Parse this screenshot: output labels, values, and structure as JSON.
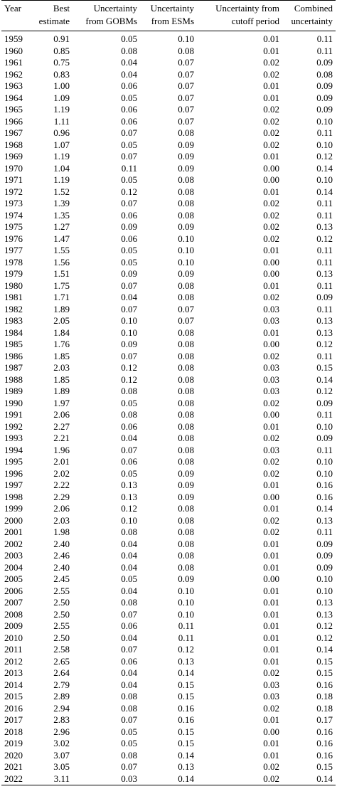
{
  "table": {
    "headers": [
      [
        "Year"
      ],
      [
        "Best",
        "estimate"
      ],
      [
        "Uncertainty",
        "from GOBMs"
      ],
      [
        "Uncertainty",
        "from ESMs"
      ],
      [
        "Uncertainty from",
        "cutoff period"
      ],
      [
        "Combined",
        "uncertainty"
      ]
    ],
    "rows": [
      [
        "1959",
        "0.91",
        "0.05",
        "0.10",
        "0.01",
        "0.11"
      ],
      [
        "1960",
        "0.85",
        "0.08",
        "0.08",
        "0.01",
        "0.11"
      ],
      [
        "1961",
        "0.75",
        "0.04",
        "0.07",
        "0.02",
        "0.09"
      ],
      [
        "1962",
        "0.83",
        "0.04",
        "0.07",
        "0.02",
        "0.08"
      ],
      [
        "1963",
        "1.00",
        "0.06",
        "0.07",
        "0.01",
        "0.09"
      ],
      [
        "1964",
        "1.09",
        "0.05",
        "0.07",
        "0.01",
        "0.09"
      ],
      [
        "1965",
        "1.19",
        "0.06",
        "0.07",
        "0.02",
        "0.09"
      ],
      [
        "1966",
        "1.11",
        "0.06",
        "0.07",
        "0.02",
        "0.10"
      ],
      [
        "1967",
        "0.96",
        "0.07",
        "0.08",
        "0.02",
        "0.11"
      ],
      [
        "1968",
        "1.07",
        "0.05",
        "0.09",
        "0.02",
        "0.10"
      ],
      [
        "1969",
        "1.19",
        "0.07",
        "0.09",
        "0.01",
        "0.12"
      ],
      [
        "1970",
        "1.04",
        "0.11",
        "0.09",
        "0.00",
        "0.14"
      ],
      [
        "1971",
        "1.19",
        "0.05",
        "0.08",
        "0.00",
        "0.10"
      ],
      [
        "1972",
        "1.52",
        "0.12",
        "0.08",
        "0.01",
        "0.14"
      ],
      [
        "1973",
        "1.39",
        "0.07",
        "0.08",
        "0.02",
        "0.11"
      ],
      [
        "1974",
        "1.35",
        "0.06",
        "0.08",
        "0.02",
        "0.11"
      ],
      [
        "1975",
        "1.27",
        "0.09",
        "0.09",
        "0.02",
        "0.13"
      ],
      [
        "1976",
        "1.47",
        "0.06",
        "0.10",
        "0.02",
        "0.12"
      ],
      [
        "1977",
        "1.55",
        "0.05",
        "0.10",
        "0.01",
        "0.11"
      ],
      [
        "1978",
        "1.56",
        "0.05",
        "0.10",
        "0.00",
        "0.11"
      ],
      [
        "1979",
        "1.51",
        "0.09",
        "0.09",
        "0.00",
        "0.13"
      ],
      [
        "1980",
        "1.75",
        "0.07",
        "0.08",
        "0.01",
        "0.11"
      ],
      [
        "1981",
        "1.71",
        "0.04",
        "0.08",
        "0.02",
        "0.09"
      ],
      [
        "1982",
        "1.89",
        "0.07",
        "0.07",
        "0.03",
        "0.11"
      ],
      [
        "1983",
        "2.05",
        "0.10",
        "0.07",
        "0.03",
        "0.13"
      ],
      [
        "1984",
        "1.84",
        "0.10",
        "0.08",
        "0.01",
        "0.13"
      ],
      [
        "1985",
        "1.76",
        "0.09",
        "0.08",
        "0.00",
        "0.12"
      ],
      [
        "1986",
        "1.85",
        "0.07",
        "0.08",
        "0.02",
        "0.11"
      ],
      [
        "1987",
        "2.03",
        "0.12",
        "0.08",
        "0.03",
        "0.15"
      ],
      [
        "1988",
        "1.85",
        "0.12",
        "0.08",
        "0.03",
        "0.14"
      ],
      [
        "1989",
        "1.89",
        "0.08",
        "0.08",
        "0.03",
        "0.12"
      ],
      [
        "1990",
        "1.97",
        "0.05",
        "0.08",
        "0.02",
        "0.09"
      ],
      [
        "1991",
        "2.06",
        "0.08",
        "0.08",
        "0.00",
        "0.11"
      ],
      [
        "1992",
        "2.27",
        "0.06",
        "0.08",
        "0.01",
        "0.10"
      ],
      [
        "1993",
        "2.21",
        "0.04",
        "0.08",
        "0.02",
        "0.09"
      ],
      [
        "1994",
        "1.96",
        "0.07",
        "0.08",
        "0.03",
        "0.11"
      ],
      [
        "1995",
        "2.01",
        "0.06",
        "0.08",
        "0.02",
        "0.10"
      ],
      [
        "1996",
        "2.02",
        "0.05",
        "0.09",
        "0.02",
        "0.10"
      ],
      [
        "1997",
        "2.22",
        "0.13",
        "0.09",
        "0.01",
        "0.16"
      ],
      [
        "1998",
        "2.29",
        "0.13",
        "0.09",
        "0.00",
        "0.16"
      ],
      [
        "1999",
        "2.06",
        "0.12",
        "0.08",
        "0.01",
        "0.14"
      ],
      [
        "2000",
        "2.03",
        "0.10",
        "0.08",
        "0.02",
        "0.13"
      ],
      [
        "2001",
        "1.98",
        "0.08",
        "0.08",
        "0.02",
        "0.11"
      ],
      [
        "2002",
        "2.40",
        "0.04",
        "0.08",
        "0.01",
        "0.09"
      ],
      [
        "2003",
        "2.46",
        "0.04",
        "0.08",
        "0.01",
        "0.09"
      ],
      [
        "2004",
        "2.40",
        "0.04",
        "0.08",
        "0.01",
        "0.09"
      ],
      [
        "2005",
        "2.45",
        "0.05",
        "0.09",
        "0.00",
        "0.10"
      ],
      [
        "2006",
        "2.55",
        "0.04",
        "0.10",
        "0.01",
        "0.10"
      ],
      [
        "2007",
        "2.50",
        "0.08",
        "0.10",
        "0.01",
        "0.13"
      ],
      [
        "2008",
        "2.50",
        "0.07",
        "0.10",
        "0.01",
        "0.13"
      ],
      [
        "2009",
        "2.55",
        "0.06",
        "0.11",
        "0.01",
        "0.12"
      ],
      [
        "2010",
        "2.50",
        "0.04",
        "0.11",
        "0.01",
        "0.12"
      ],
      [
        "2011",
        "2.58",
        "0.07",
        "0.12",
        "0.01",
        "0.14"
      ],
      [
        "2012",
        "2.65",
        "0.06",
        "0.13",
        "0.01",
        "0.15"
      ],
      [
        "2013",
        "2.64",
        "0.04",
        "0.14",
        "0.02",
        "0.15"
      ],
      [
        "2014",
        "2.79",
        "0.04",
        "0.15",
        "0.03",
        "0.16"
      ],
      [
        "2015",
        "2.89",
        "0.08",
        "0.15",
        "0.03",
        "0.18"
      ],
      [
        "2016",
        "2.94",
        "0.08",
        "0.16",
        "0.02",
        "0.18"
      ],
      [
        "2017",
        "2.83",
        "0.07",
        "0.16",
        "0.01",
        "0.17"
      ],
      [
        "2018",
        "2.96",
        "0.05",
        "0.15",
        "0.00",
        "0.16"
      ],
      [
        "2019",
        "3.02",
        "0.05",
        "0.15",
        "0.01",
        "0.16"
      ],
      [
        "2020",
        "3.07",
        "0.08",
        "0.14",
        "0.01",
        "0.16"
      ],
      [
        "2021",
        "3.05",
        "0.07",
        "0.13",
        "0.02",
        "0.15"
      ],
      [
        "2022",
        "3.11",
        "0.03",
        "0.14",
        "0.02",
        "0.14"
      ]
    ]
  }
}
